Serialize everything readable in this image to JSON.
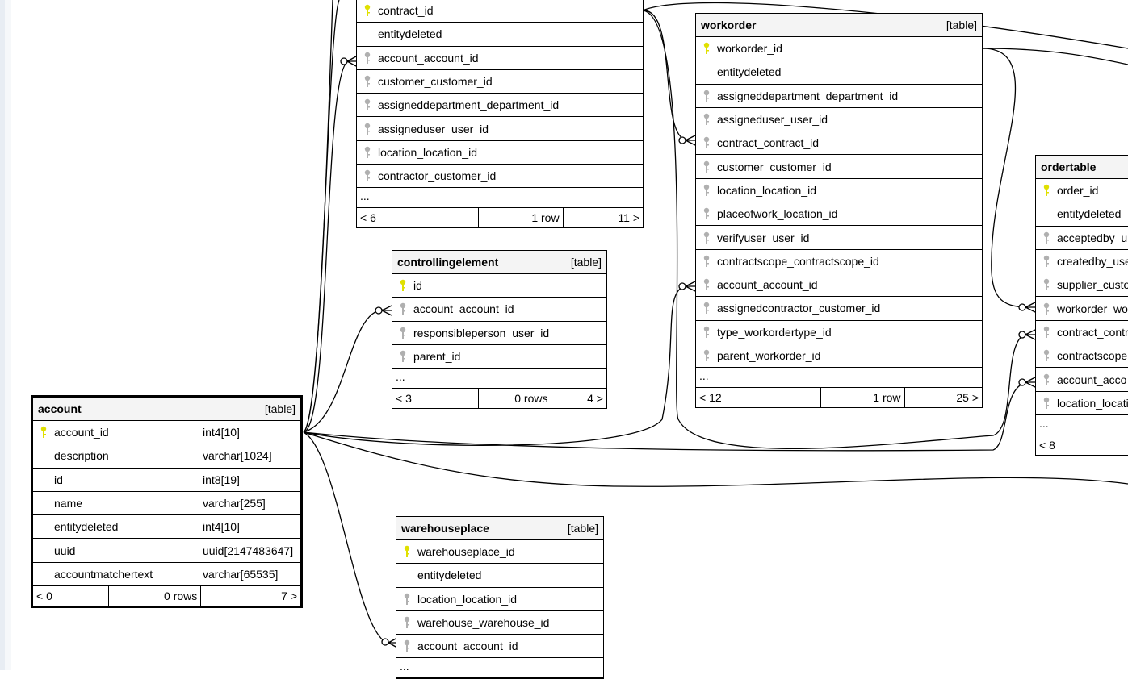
{
  "colors": {
    "primary_key": "#e0e000",
    "foreign_key": "#b0b0b0",
    "header_bg": "#f4f4f4"
  },
  "tables": [
    {
      "id": "contract",
      "name": "",
      "type_label": "",
      "rows": [
        {
          "name": "contract_id",
          "key": "primary"
        },
        {
          "name": "entitydeleted",
          "key": ""
        },
        {
          "name": "account_account_id",
          "key": "foreign"
        },
        {
          "name": "customer_customer_id",
          "key": "foreign"
        },
        {
          "name": "assigneddepartment_department_id",
          "key": "foreign"
        },
        {
          "name": "assigneduser_user_id",
          "key": "foreign"
        },
        {
          "name": "location_location_id",
          "key": "foreign"
        },
        {
          "name": "contractor_customer_id",
          "key": "foreign"
        }
      ],
      "more": "...",
      "footer": {
        "prev": "< 6",
        "rows": "1 row",
        "next": "11 >"
      }
    },
    {
      "id": "controllingelement",
      "name": "controllingelement",
      "type_label": "[table]",
      "rows": [
        {
          "name": "id",
          "key": "primary"
        },
        {
          "name": "account_account_id",
          "key": "foreign"
        },
        {
          "name": "responsibleperson_user_id",
          "key": "foreign"
        },
        {
          "name": "parent_id",
          "key": "foreign"
        }
      ],
      "more": "...",
      "footer": {
        "prev": "< 3",
        "rows": "0 rows",
        "next": "4 >"
      }
    },
    {
      "id": "workorder",
      "name": "workorder",
      "type_label": "[table]",
      "rows": [
        {
          "name": "workorder_id",
          "key": "primary"
        },
        {
          "name": "entitydeleted",
          "key": ""
        },
        {
          "name": "assigneddepartment_department_id",
          "key": "foreign"
        },
        {
          "name": "assigneduser_user_id",
          "key": "foreign"
        },
        {
          "name": "contract_contract_id",
          "key": "foreign"
        },
        {
          "name": "customer_customer_id",
          "key": "foreign"
        },
        {
          "name": "location_location_id",
          "key": "foreign"
        },
        {
          "name": "placeofwork_location_id",
          "key": "foreign"
        },
        {
          "name": "verifyuser_user_id",
          "key": "foreign"
        },
        {
          "name": "contractscope_contractscope_id",
          "key": "foreign"
        },
        {
          "name": "account_account_id",
          "key": "foreign"
        },
        {
          "name": "assignedcontractor_customer_id",
          "key": "foreign"
        },
        {
          "name": "type_workordertype_id",
          "key": "foreign"
        },
        {
          "name": "parent_workorder_id",
          "key": "foreign"
        }
      ],
      "more": "...",
      "footer": {
        "prev": "< 12",
        "rows": "1 row",
        "next": "25 >"
      }
    },
    {
      "id": "ordertable",
      "name": "ordertable",
      "type_label": "",
      "rows": [
        {
          "name": "order_id",
          "key": "primary"
        },
        {
          "name": "entitydeleted",
          "key": ""
        },
        {
          "name": "acceptedby_u",
          "key": "foreign"
        },
        {
          "name": "createdby_use",
          "key": "foreign"
        },
        {
          "name": "supplier_custo",
          "key": "foreign"
        },
        {
          "name": "workorder_wo",
          "key": "foreign"
        },
        {
          "name": "contract_contr",
          "key": "foreign"
        },
        {
          "name": "contractscope",
          "key": "foreign"
        },
        {
          "name": "account_acco",
          "key": "foreign"
        },
        {
          "name": "location_locati",
          "key": "foreign"
        }
      ],
      "more": "...",
      "footer": {
        "prev": "< 8",
        "rows": "",
        "next": ""
      }
    },
    {
      "id": "account",
      "name": "account",
      "type_label": "[table]",
      "rows": [
        {
          "name": "account_id",
          "key": "primary",
          "type": "int4[10]"
        },
        {
          "name": "description",
          "key": "",
          "type": "varchar[1024]"
        },
        {
          "name": "id",
          "key": "",
          "type": "int8[19]"
        },
        {
          "name": "name",
          "key": "",
          "type": "varchar[255]"
        },
        {
          "name": "entitydeleted",
          "key": "",
          "type": "int4[10]"
        },
        {
          "name": "uuid",
          "key": "",
          "type": "uuid[2147483647]"
        },
        {
          "name": "accountmatchertext",
          "key": "",
          "type": "varchar[65535]"
        }
      ],
      "more": "",
      "footer": {
        "prev": "< 0",
        "rows": "0 rows",
        "next": "7 >"
      }
    },
    {
      "id": "warehouseplace",
      "name": "warehouseplace",
      "type_label": "[table]",
      "rows": [
        {
          "name": "warehouseplace_id",
          "key": "primary"
        },
        {
          "name": "entitydeleted",
          "key": ""
        },
        {
          "name": "location_location_id",
          "key": "foreign"
        },
        {
          "name": "warehouse_warehouse_id",
          "key": "foreign"
        },
        {
          "name": "account_account_id",
          "key": "foreign"
        }
      ],
      "more": "...",
      "footer": null
    }
  ]
}
